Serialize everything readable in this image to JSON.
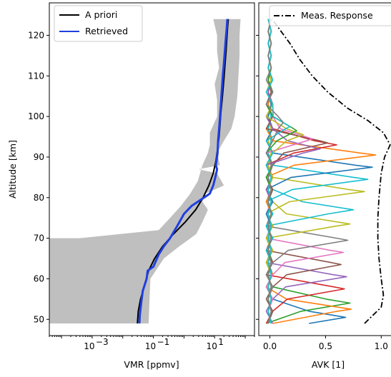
{
  "chart_data": [
    {
      "type": "line",
      "xscale": "log",
      "xlabel": "VMR [ppmv]",
      "ylabel": "Altitude [km]",
      "xlim": [
        4e-05,
        200
      ],
      "ylim": [
        46,
        128
      ],
      "x_tick_labels": [
        {
          "value": 0.001,
          "base": "10",
          "exp": "−3"
        },
        {
          "value": 0.1,
          "base": "10",
          "exp": "−1"
        },
        {
          "value": 10,
          "base": "10",
          "exp": "1"
        }
      ],
      "y_ticks": [
        50,
        60,
        70,
        80,
        90,
        100,
        110,
        120
      ],
      "legend": {
        "position": "top-left"
      },
      "series": [
        {
          "name": "A priori",
          "color": "#000000",
          "points": [
            [
              0.03,
              49
            ],
            [
              0.032,
              52
            ],
            [
              0.038,
              55
            ],
            [
              0.05,
              58
            ],
            [
              0.07,
              62
            ],
            [
              0.11,
              65
            ],
            [
              0.2,
              68
            ],
            [
              0.45,
              71
            ],
            [
              1.1,
              74
            ],
            [
              2.4,
              77
            ],
            [
              4.2,
              80
            ],
            [
              6.5,
              83
            ],
            [
              9,
              86
            ],
            [
              11,
              89
            ],
            [
              12.5,
              92
            ],
            [
              14,
              95
            ],
            [
              15,
              98
            ],
            [
              16,
              101
            ],
            [
              17.5,
              104
            ],
            [
              19,
              107
            ],
            [
              20.5,
              110
            ],
            [
              22,
              113
            ],
            [
              23.5,
              116
            ],
            [
              25,
              119
            ],
            [
              26.5,
              122
            ],
            [
              28,
              124
            ]
          ]
        },
        {
          "name": "Retrieved",
          "color": "#1f3fe0",
          "points": [
            [
              0.035,
              49
            ],
            [
              0.036,
              51
            ],
            [
              0.04,
              54
            ],
            [
              0.045,
              57
            ],
            [
              0.06,
              60
            ],
            [
              0.065,
              62
            ],
            [
              0.1,
              63
            ],
            [
              0.15,
              66
            ],
            [
              0.22,
              68
            ],
            [
              0.35,
              70
            ],
            [
              0.5,
              72
            ],
            [
              0.6,
              73
            ],
            [
              1,
              76
            ],
            [
              1.8,
              78
            ],
            [
              4.5,
              80
            ],
            [
              7,
              81
            ],
            [
              9,
              83
            ],
            [
              10.5,
              85
            ],
            [
              12,
              87
            ],
            [
              11,
              88
            ],
            [
              11.5,
              89
            ],
            [
              12.5,
              91
            ],
            [
              13,
              94
            ],
            [
              14,
              97
            ],
            [
              15,
              100
            ],
            [
              16,
              103
            ],
            [
              17,
              106
            ],
            [
              18.5,
              110
            ],
            [
              20,
              113
            ],
            [
              21.5,
              116
            ],
            [
              23,
              119
            ],
            [
              25,
              122
            ],
            [
              26,
              124
            ]
          ]
        }
      ],
      "uncertainty_band": {
        "color": "#bfbfbf",
        "points": [
          [
            0.07,
            49
          ],
          [
            0.075,
            55
          ],
          [
            0.08,
            60
          ],
          [
            0.22,
            65
          ],
          [
            0.7,
            68
          ],
          [
            2.5,
            71
          ],
          [
            4,
            74
          ],
          [
            6,
            77
          ],
          [
            4,
            79
          ],
          [
            5,
            81
          ],
          [
            20,
            83
          ],
          [
            12,
            86
          ],
          [
            3,
            87
          ],
          [
            15,
            88
          ],
          [
            12,
            91
          ],
          [
            20,
            94
          ],
          [
            35,
            97
          ],
          [
            45,
            100
          ],
          [
            55,
            105
          ],
          [
            60,
            110
          ],
          [
            65,
            115
          ],
          [
            65,
            120
          ],
          [
            70,
            124
          ],
          [
            9,
            124
          ],
          [
            12,
            120
          ],
          [
            12,
            116
          ],
          [
            14,
            112
          ],
          [
            10,
            108
          ],
          [
            12,
            104
          ],
          [
            12,
            100
          ],
          [
            7,
            96
          ],
          [
            7,
            93
          ],
          [
            6,
            91
          ],
          [
            4,
            88
          ],
          [
            2.8,
            84
          ],
          [
            1.6,
            81
          ],
          [
            0.8,
            78
          ],
          [
            0.35,
            75
          ],
          [
            0.15,
            72
          ],
          [
            0.0004,
            70
          ],
          [
            4e-05,
            70
          ],
          [
            4e-05,
            49
          ]
        ]
      }
    },
    {
      "type": "line",
      "xlabel": "AVK [1]",
      "xlim": [
        -0.1,
        1.12
      ],
      "ylim": [
        46,
        128
      ],
      "x_ticks": [
        {
          "value": 0,
          "label": "0.0"
        },
        {
          "value": 0.5,
          "label": "0.5"
        },
        {
          "value": 1,
          "label": "1.0"
        }
      ],
      "legend": {
        "position": "top-right",
        "entries": [
          "Meas. Response"
        ]
      },
      "measurement_response": {
        "name": "Meas. Response",
        "color": "#000000",
        "style": "dash-dot",
        "points": [
          [
            0.85,
            49
          ],
          [
            1,
            53
          ],
          [
            1.02,
            56
          ],
          [
            1,
            60
          ],
          [
            0.98,
            65
          ],
          [
            0.97,
            70
          ],
          [
            0.97,
            75
          ],
          [
            0.98,
            80
          ],
          [
            1,
            86
          ],
          [
            1.03,
            90
          ],
          [
            1.08,
            93
          ],
          [
            1.02,
            96
          ],
          [
            0.88,
            99
          ],
          [
            0.7,
            102
          ],
          [
            0.52,
            106
          ],
          [
            0.38,
            110
          ],
          [
            0.27,
            114
          ],
          [
            0.18,
            118
          ],
          [
            0.1,
            121
          ],
          [
            0.02,
            124
          ]
        ]
      },
      "kernels": [
        {
          "color": "#1f77b4",
          "peak_alt": 50.5,
          "peak_val": 0.68
        },
        {
          "color": "#2ca02c",
          "peak_alt": 54.0,
          "peak_val": 0.72
        },
        {
          "color": "#ff7f0e",
          "peak_alt": 52.5,
          "peak_val": 0.73
        },
        {
          "color": "#d62728",
          "peak_alt": 57.5,
          "peak_val": 0.67
        },
        {
          "color": "#9467bd",
          "peak_alt": 60.5,
          "peak_val": 0.69
        },
        {
          "color": "#8c564b",
          "peak_alt": 63.5,
          "peak_val": 0.64
        },
        {
          "color": "#e377c2",
          "peak_alt": 66.5,
          "peak_val": 0.66
        },
        {
          "color": "#7f7f7f",
          "peak_alt": 69.5,
          "peak_val": 0.7
        },
        {
          "color": "#bcbd22",
          "peak_alt": 73.5,
          "peak_val": 0.72
        },
        {
          "color": "#17becf",
          "peak_alt": 77.0,
          "peak_val": 0.75
        },
        {
          "color": "#bcbd22",
          "peak_alt": 81.5,
          "peak_val": 0.85
        },
        {
          "color": "#17becf",
          "peak_alt": 84.5,
          "peak_val": 0.88
        },
        {
          "color": "#1f77b4",
          "peak_alt": 87.5,
          "peak_val": 0.92
        },
        {
          "color": "#ff7f0e",
          "peak_alt": 90.5,
          "peak_val": 0.95
        },
        {
          "color": "#d62728",
          "peak_alt": 93.0,
          "peak_val": 0.6
        },
        {
          "color": "#8c564b",
          "peak_alt": 93.5,
          "peak_val": 0.52
        },
        {
          "color": "#9467bd",
          "peak_alt": 92.0,
          "peak_val": 0.45
        },
        {
          "color": "#e377c2",
          "peak_alt": 94.5,
          "peak_val": 0.38
        },
        {
          "color": "#bcbd22",
          "peak_alt": 95.5,
          "peak_val": 0.3
        },
        {
          "color": "#2ca02c",
          "peak_alt": 96.5,
          "peak_val": 0.24
        },
        {
          "color": "#17becf",
          "peak_alt": 97.5,
          "peak_val": 0.18
        },
        {
          "color": "#7f7f7f",
          "peak_alt": 98.5,
          "peak_val": 0.12
        }
      ]
    }
  ]
}
